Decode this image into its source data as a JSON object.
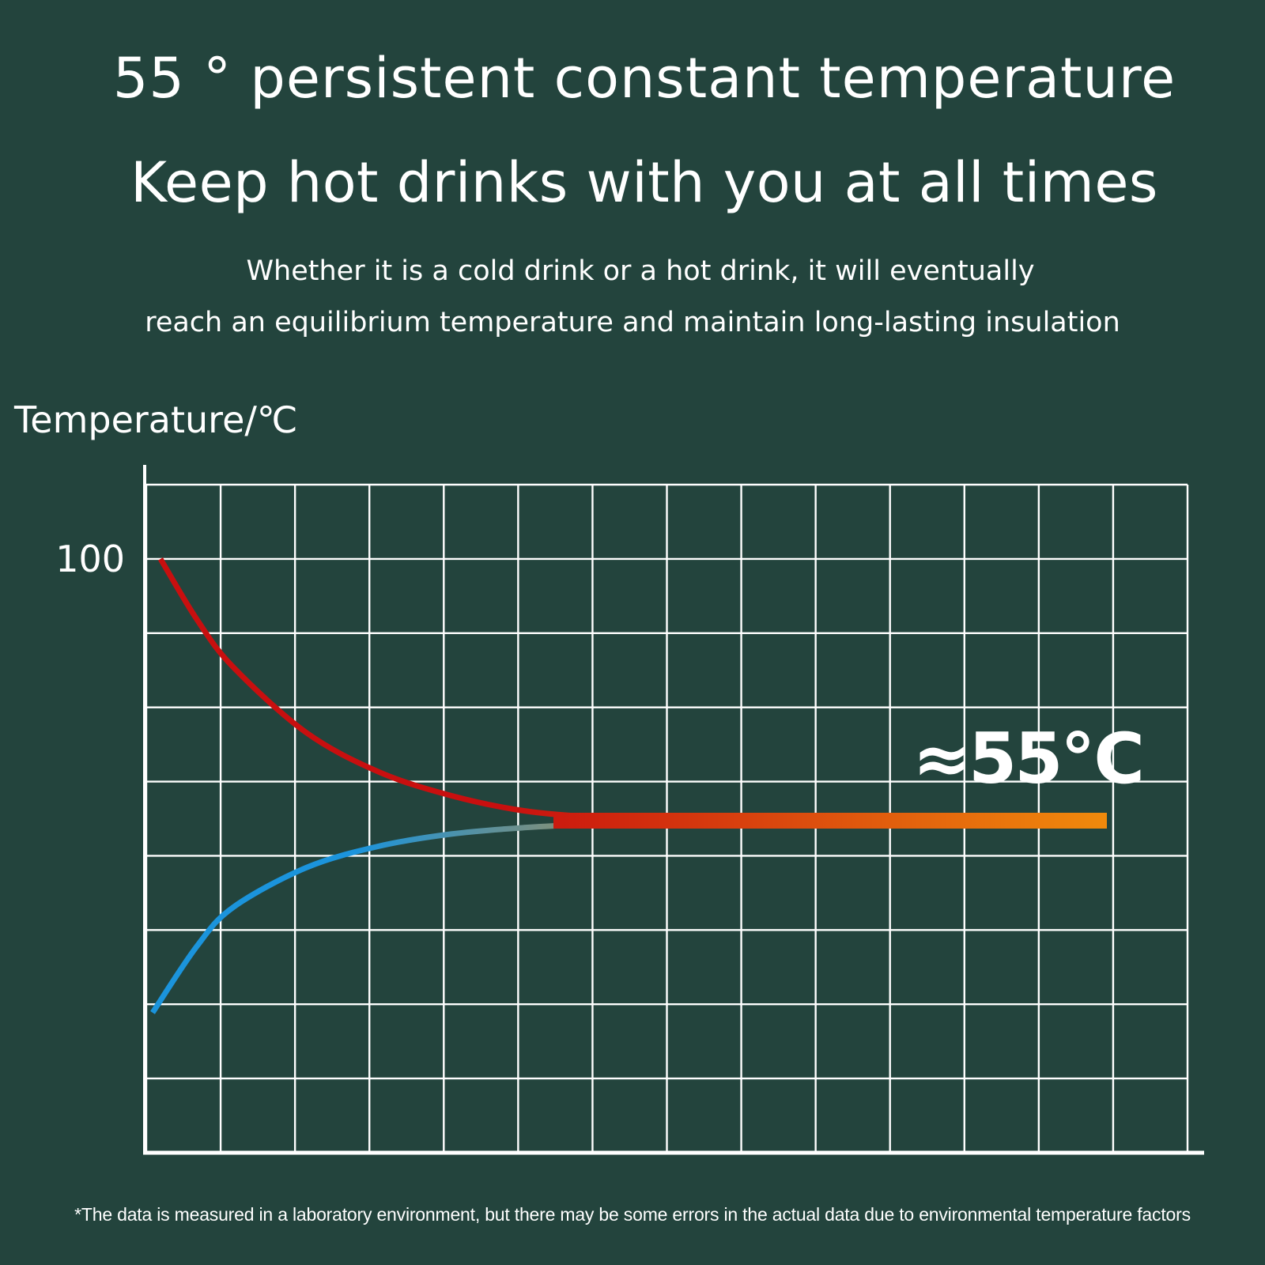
{
  "headline": {
    "title": "55 ° persistent constant temperature",
    "subtitle": "Keep hot drinks with you at all times",
    "description_line1": "Whether it is a cold drink or a hot drink, it will eventually",
    "description_line2": "reach an equilibrium temperature and maintain long-lasting insulation"
  },
  "footnote": "*The data is measured in a laboratory environment, but there may be some errors in the actual data due to environmental temperature factors",
  "colors": {
    "background": "#23443d",
    "grid": "#ffffff",
    "hot_series": "#c80f0f",
    "cold_series": "#1b94dc",
    "equilibrium": "#f08a0c"
  },
  "chart_data": {
    "type": "line",
    "ylabel": "Temperature/℃",
    "xlabel": "",
    "y_ticks": [
      {
        "value": 100,
        "label": "100"
      }
    ],
    "grid": true,
    "annotation": "≈55℃",
    "equilibrium_value": 55,
    "series": [
      {
        "x": [
          0,
          0.5,
          1,
          2,
          3,
          4,
          5,
          6,
          7,
          8,
          9,
          10,
          11,
          12,
          13
        ],
        "values": [
          100,
          89.6,
          81.4,
          70.2,
          63.4,
          59.3,
          56.7,
          55.6,
          55.2,
          55,
          55,
          55,
          55,
          55,
          55
        ]
      },
      {
        "x": [
          0,
          0.5,
          1,
          2,
          3,
          4,
          5,
          6,
          7,
          8,
          9,
          10,
          11,
          12,
          13
        ],
        "values": [
          22,
          33.4,
          40.1,
          46.9,
          50.6,
          52.7,
          53.8,
          54.4,
          54.7,
          54.9,
          55,
          55,
          55,
          55,
          55
        ]
      }
    ]
  }
}
